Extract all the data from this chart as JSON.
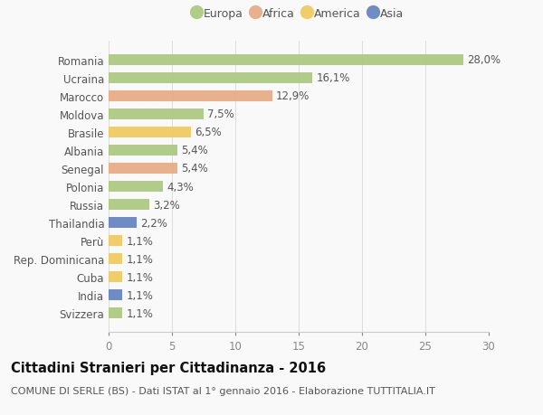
{
  "categories": [
    "Romania",
    "Ucraina",
    "Marocco",
    "Moldova",
    "Brasile",
    "Albania",
    "Senegal",
    "Polonia",
    "Russia",
    "Thailandia",
    "Perù",
    "Rep. Dominicana",
    "Cuba",
    "India",
    "Svizzera"
  ],
  "values": [
    28.0,
    16.1,
    12.9,
    7.5,
    6.5,
    5.4,
    5.4,
    4.3,
    3.2,
    2.2,
    1.1,
    1.1,
    1.1,
    1.1,
    1.1
  ],
  "labels": [
    "28,0%",
    "16,1%",
    "12,9%",
    "7,5%",
    "6,5%",
    "5,4%",
    "5,4%",
    "4,3%",
    "3,2%",
    "2,2%",
    "1,1%",
    "1,1%",
    "1,1%",
    "1,1%",
    "1,1%"
  ],
  "continents": [
    "Europa",
    "Europa",
    "Africa",
    "Europa",
    "America",
    "Europa",
    "Africa",
    "Europa",
    "Europa",
    "Asia",
    "America",
    "America",
    "America",
    "Asia",
    "Europa"
  ],
  "colors": {
    "Europa": "#aac87d",
    "Africa": "#e8a882",
    "America": "#f0c95c",
    "Asia": "#6080c0"
  },
  "legend_labels": [
    "Europa",
    "Africa",
    "America",
    "Asia"
  ],
  "legend_colors": [
    "#aac87d",
    "#e8a882",
    "#f0c95c",
    "#6080c0"
  ],
  "xlim": [
    0,
    30
  ],
  "xticks": [
    0,
    5,
    10,
    15,
    20,
    25,
    30
  ],
  "title": "Cittadini Stranieri per Cittadinanza - 2016",
  "subtitle": "COMUNE DI SERLE (BS) - Dati ISTAT al 1° gennaio 2016 - Elaborazione TUTTITALIA.IT",
  "bg_color": "#f9f9f9",
  "bar_height": 0.62,
  "label_fontsize": 8.5,
  "tick_fontsize": 8.5,
  "title_fontsize": 10.5,
  "subtitle_fontsize": 8.0
}
